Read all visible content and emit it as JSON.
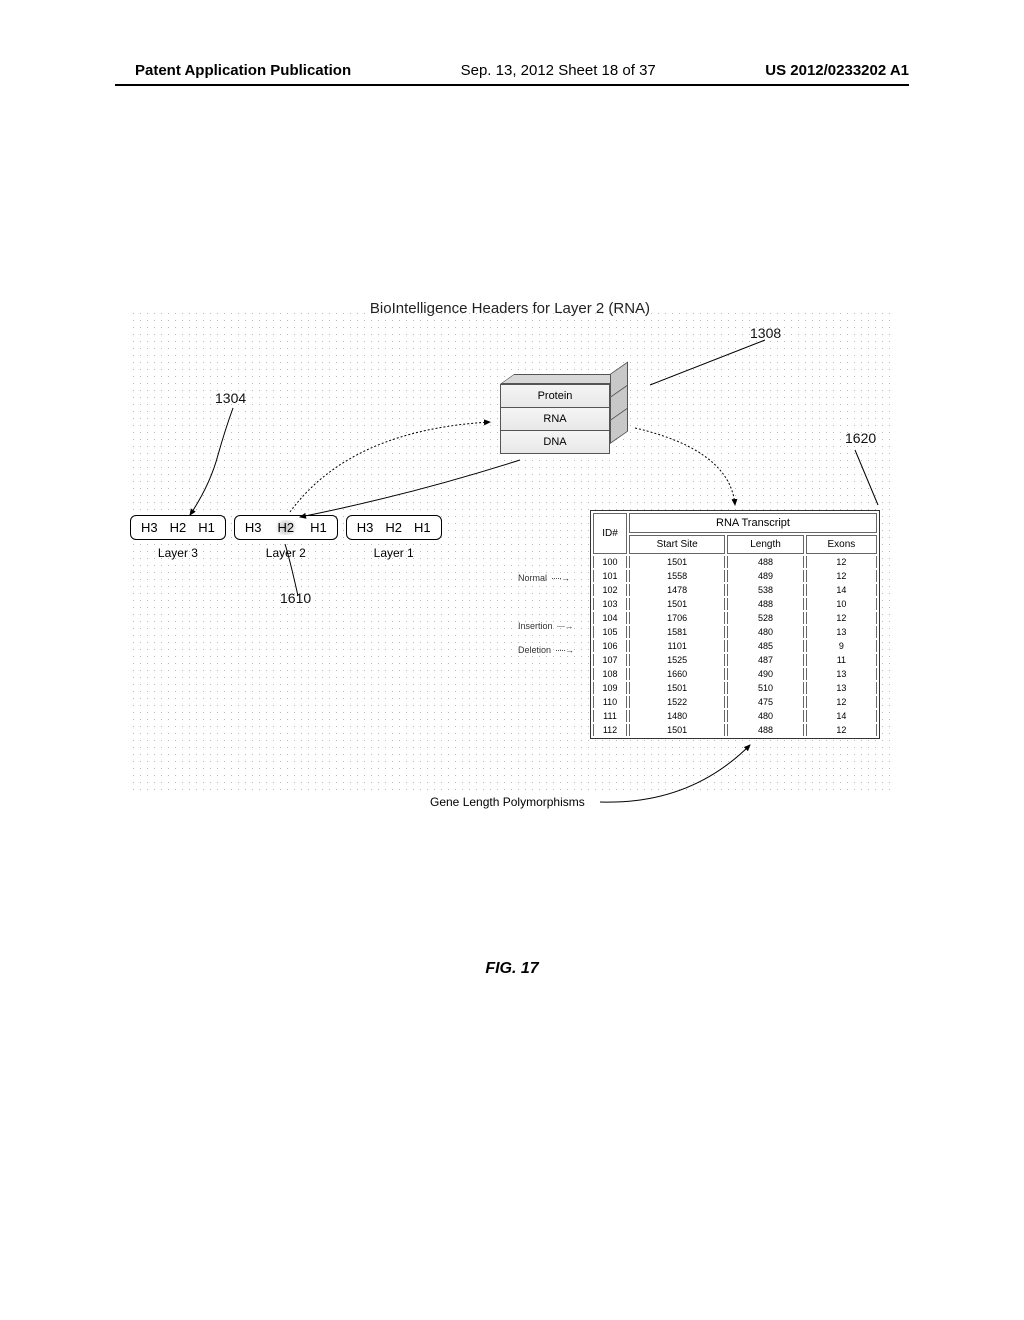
{
  "header": {
    "left": "Patent Application Publication",
    "mid": "Sep. 13, 2012  Sheet 18 of 37",
    "right": "US 2012/0233202 A1"
  },
  "figure": {
    "title": "BioIntelligence Headers for Layer 2 (RNA)",
    "ref_1304": "1304",
    "ref_1308": "1308",
    "ref_1620": "1620",
    "ref_1610": "1610",
    "cube_labels": {
      "top": "Protein",
      "mid": "RNA",
      "bot": "DNA"
    },
    "layer_boxes": {
      "l3": {
        "h3": "H3",
        "h2": "H2",
        "h1": "H1",
        "label": "Layer 3"
      },
      "l2": {
        "h3": "H3",
        "h2": "H2",
        "h1": "H1",
        "label": "Layer 2"
      },
      "l1": {
        "h3": "H3",
        "h2": "H2",
        "h1": "H1",
        "label": "Layer 1"
      }
    },
    "row_annotations": {
      "normal": "Normal",
      "insertion": "Insertion",
      "deletion": "Deletion"
    },
    "table": {
      "head_id": "ID#",
      "head_main": "RNA Transcript",
      "sub_start": "Start Site",
      "sub_length": "Length",
      "sub_exons": "Exons",
      "rows": [
        {
          "id": "100",
          "start": "1501",
          "len": "488",
          "ex": "12"
        },
        {
          "id": "101",
          "start": "1558",
          "len": "489",
          "ex": "12"
        },
        {
          "id": "102",
          "start": "1478",
          "len": "538",
          "ex": "14"
        },
        {
          "id": "103",
          "start": "1501",
          "len": "488",
          "ex": "10"
        },
        {
          "id": "104",
          "start": "1706",
          "len": "528",
          "ex": "12"
        },
        {
          "id": "105",
          "start": "1581",
          "len": "480",
          "ex": "13"
        },
        {
          "id": "106",
          "start": "1101",
          "len": "485",
          "ex": "9"
        },
        {
          "id": "107",
          "start": "1525",
          "len": "487",
          "ex": "11"
        },
        {
          "id": "108",
          "start": "1660",
          "len": "490",
          "ex": "13"
        },
        {
          "id": "109",
          "start": "1501",
          "len": "510",
          "ex": "13"
        },
        {
          "id": "110",
          "start": "1522",
          "len": "475",
          "ex": "12"
        },
        {
          "id": "111",
          "start": "1480",
          "len": "480",
          "ex": "14"
        },
        {
          "id": "112",
          "start": "1501",
          "len": "488",
          "ex": "12"
        }
      ]
    },
    "bottom_caption": "Gene Length Polymorphisms",
    "figure_number": "FIG. 17"
  }
}
